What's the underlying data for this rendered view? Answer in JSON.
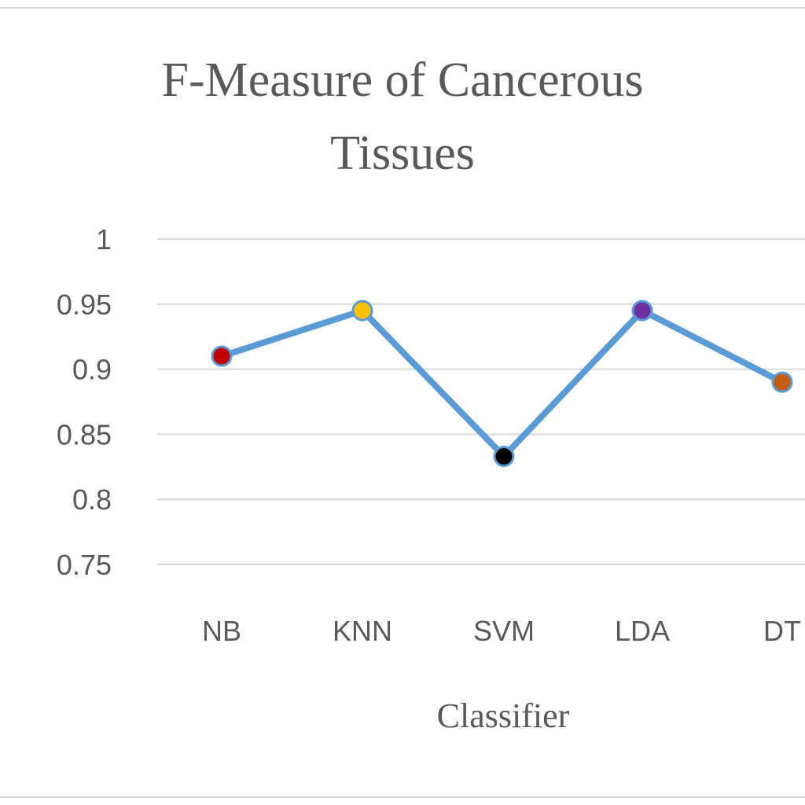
{
  "chart_data": {
    "type": "line",
    "title_lines": [
      "F-Measure of Cancerous",
      "Tissues"
    ],
    "xlabel": "Classifier",
    "ylabel": "",
    "categories": [
      "NB",
      "KNN",
      "SVM",
      "LDA",
      "DT"
    ],
    "series": [
      {
        "values": [
          0.91,
          0.945,
          0.833,
          0.945,
          0.89
        ],
        "line_color": "#5b9bd5",
        "marker_colors": [
          "#c00000",
          "#ffc000",
          "#000000",
          "#7030a0",
          "#c55a11"
        ]
      }
    ],
    "ylim": [
      0.75,
      1
    ],
    "yticks": [
      "1",
      "0.95",
      "0.9",
      "0.85",
      "0.8",
      "0.75"
    ],
    "grid": true,
    "legend": "none"
  }
}
